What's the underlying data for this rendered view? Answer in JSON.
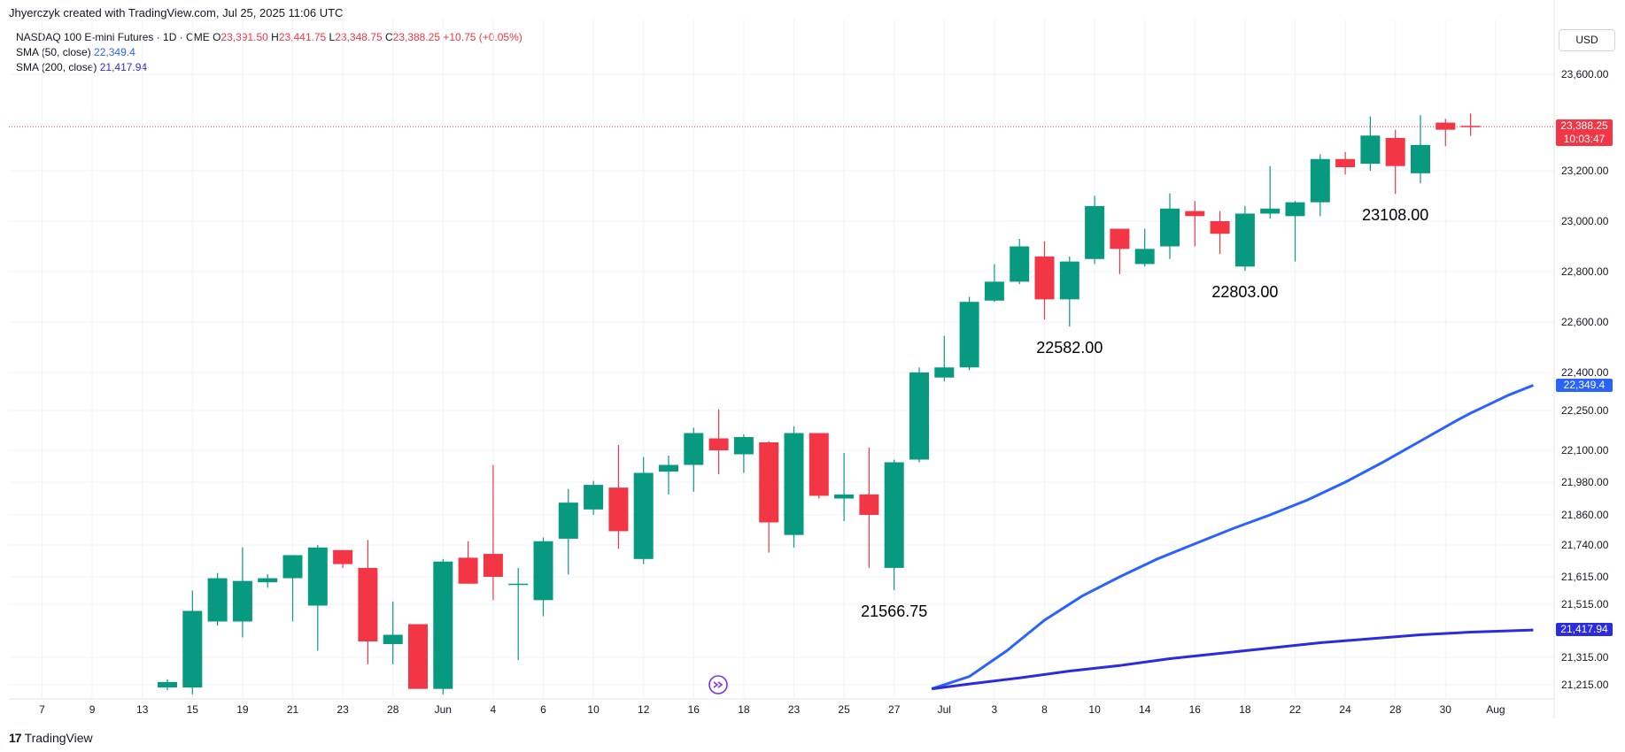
{
  "header": {
    "credit": "Jhyerczyk created with TradingView.com, Jul 25, 2025 11:06 UTC"
  },
  "legend": {
    "symbol": "NASDAQ 100 E-mini Futures · 1D · CME",
    "open_label": "O",
    "open": "23,391.50",
    "high_label": "H",
    "high": "23,441.75",
    "low_label": "L",
    "low": "23,348.75",
    "close_label": "C",
    "close": "23,388.25",
    "change": "+10.75 (+0.05%)",
    "sma50_label": "SMA (50, close)",
    "sma50_value": "22,349.4",
    "sma200_label": "SMA (200, close)",
    "sma200_value": "21,417.94"
  },
  "currency": "USD",
  "last_price_tag": {
    "price": "23,388.25",
    "countdown": "10:03:47"
  },
  "sma50_tag": "22,349.4",
  "sma200_tag": "21,417.94",
  "footer": {
    "brand": "TradingView",
    "logo_glyph": "17"
  },
  "colors": {
    "up": "#089981",
    "down": "#f23645",
    "sma50": "#2962ff",
    "sma200": "#2b2be0",
    "grid": "#f0f3fa",
    "text": "#131722"
  },
  "icons": [
    "scroll-to-realtime-icon",
    "tradingview-logo-icon"
  ],
  "chart_data": {
    "type": "candlestick",
    "title": "NASDAQ 100 E-mini Futures · 1D · CME",
    "y_axis_ticks": [
      "23,600.00",
      "23,400.00",
      "23,200.00",
      "23,000.00",
      "22,800.00",
      "22,600.00",
      "22,400.00",
      "22,250.00",
      "22,100.00",
      "21,980.00",
      "21,860.00",
      "21,740.00",
      "21,615.00",
      "21,515.00",
      "21,315.00",
      "21,215.00"
    ],
    "x_axis_ticks": [
      "7",
      "9",
      "13",
      "15",
      "19",
      "21",
      "23",
      "28",
      "Jun",
      "4",
      "6",
      "10",
      "12",
      "16",
      "18",
      "23",
      "25",
      "27",
      "Jul",
      "3",
      "8",
      "10",
      "14",
      "16",
      "18",
      "22",
      "24",
      "28",
      "30",
      "Aug"
    ],
    "x_tick_slots": [
      0,
      2,
      4,
      6,
      8,
      10,
      12,
      14,
      16,
      18,
      20,
      22,
      24,
      26,
      28,
      30,
      32,
      34,
      36,
      38,
      40,
      42,
      44,
      46,
      48,
      50,
      52,
      54,
      56,
      58
    ],
    "candles": [
      {
        "slot": 5,
        "o": 21205,
        "h": 21235,
        "l": 21195,
        "c": 21225
      },
      {
        "slot": 6,
        "o": 21205,
        "h": 21565,
        "l": 21180,
        "c": 21490
      },
      {
        "slot": 7,
        "o": 21450,
        "h": 21630,
        "l": 21435,
        "c": 21610
      },
      {
        "slot": 8,
        "o": 21450,
        "h": 21730,
        "l": 21390,
        "c": 21600
      },
      {
        "slot": 9,
        "o": 21595,
        "h": 21625,
        "l": 21575,
        "c": 21610
      },
      {
        "slot": 10,
        "o": 21610,
        "h": 21700,
        "l": 21450,
        "c": 21700
      },
      {
        "slot": 11,
        "o": 21510,
        "h": 21740,
        "l": 21340,
        "c": 21730
      },
      {
        "slot": 12,
        "o": 21720,
        "h": 21720,
        "l": 21650,
        "c": 21665
      },
      {
        "slot": 13,
        "o": 21650,
        "h": 21760,
        "l": 21290,
        "c": 21375
      },
      {
        "slot": 14,
        "o": 21365,
        "h": 21525,
        "l": 21290,
        "c": 21400
      },
      {
        "slot": 15,
        "o": 21440,
        "h": 21440,
        "l": 21200,
        "c": 21200
      },
      {
        "slot": 16,
        "o": 21200,
        "h": 21685,
        "l": 21180,
        "c": 21675
      },
      {
        "slot": 17,
        "o": 21690,
        "h": 21755,
        "l": 21590,
        "c": 21590
      },
      {
        "slot": 18,
        "o": 21705,
        "h": 22045,
        "l": 21530,
        "c": 21615
      },
      {
        "slot": 19,
        "o": 21590,
        "h": 21650,
        "l": 21305,
        "c": 21590
      },
      {
        "slot": 20,
        "o": 21530,
        "h": 21770,
        "l": 21470,
        "c": 21755
      },
      {
        "slot": 21,
        "o": 21765,
        "h": 21955,
        "l": 21625,
        "c": 21905
      },
      {
        "slot": 22,
        "o": 21880,
        "h": 21985,
        "l": 21860,
        "c": 21970
      },
      {
        "slot": 23,
        "o": 21960,
        "h": 22120,
        "l": 21725,
        "c": 21795
      },
      {
        "slot": 24,
        "o": 21685,
        "h": 22075,
        "l": 21665,
        "c": 22015
      },
      {
        "slot": 25,
        "o": 22020,
        "h": 22080,
        "l": 21935,
        "c": 22045
      },
      {
        "slot": 26,
        "o": 22045,
        "h": 22185,
        "l": 21945,
        "c": 22165
      },
      {
        "slot": 27,
        "o": 22145,
        "h": 22255,
        "l": 22010,
        "c": 22100
      },
      {
        "slot": 28,
        "o": 22085,
        "h": 22160,
        "l": 22015,
        "c": 22150
      },
      {
        "slot": 29,
        "o": 22130,
        "h": 22135,
        "l": 21710,
        "c": 21830
      },
      {
        "slot": 30,
        "o": 21780,
        "h": 22190,
        "l": 21730,
        "c": 22165
      },
      {
        "slot": 31,
        "o": 22165,
        "h": 22165,
        "l": 21920,
        "c": 21930
      },
      {
        "slot": 32,
        "o": 21920,
        "h": 22090,
        "l": 21835,
        "c": 21935
      },
      {
        "slot": 33,
        "o": 21935,
        "h": 22110,
        "l": 21650,
        "c": 21860
      },
      {
        "slot": 34,
        "o": 21650,
        "h": 22065,
        "l": 21566.75,
        "c": 22055
      },
      {
        "slot": 35,
        "o": 22065,
        "h": 22420,
        "l": 22055,
        "c": 22400
      },
      {
        "slot": 36,
        "o": 22380,
        "h": 22545,
        "l": 22365,
        "c": 22420
      },
      {
        "slot": 37,
        "o": 22420,
        "h": 22700,
        "l": 22410,
        "c": 22680
      },
      {
        "slot": 38,
        "o": 22685,
        "h": 22830,
        "l": 22680,
        "c": 22760
      },
      {
        "slot": 39,
        "o": 22760,
        "h": 22930,
        "l": 22750,
        "c": 22900
      },
      {
        "slot": 40,
        "o": 22860,
        "h": 22920,
        "l": 22610,
        "c": 22690
      },
      {
        "slot": 41,
        "o": 22690,
        "h": 22860,
        "l": 22582,
        "c": 22840
      },
      {
        "slot": 42,
        "o": 22850,
        "h": 23100,
        "l": 22830,
        "c": 23060
      },
      {
        "slot": 43,
        "o": 22970,
        "h": 22970,
        "l": 22790,
        "c": 22890
      },
      {
        "slot": 44,
        "o": 22830,
        "h": 22970,
        "l": 22820,
        "c": 22890
      },
      {
        "slot": 45,
        "o": 22900,
        "h": 23110,
        "l": 22850,
        "c": 23050
      },
      {
        "slot": 46,
        "o": 23040,
        "h": 23080,
        "l": 22900,
        "c": 23020
      },
      {
        "slot": 47,
        "o": 23000,
        "h": 23040,
        "l": 22870,
        "c": 22950
      },
      {
        "slot": 48,
        "o": 22820,
        "h": 23060,
        "l": 22803,
        "c": 23030
      },
      {
        "slot": 49,
        "o": 23030,
        "h": 23220,
        "l": 23010,
        "c": 23050
      },
      {
        "slot": 50,
        "o": 23020,
        "h": 23080,
        "l": 22840,
        "c": 23075
      },
      {
        "slot": 51,
        "o": 23075,
        "h": 23270,
        "l": 23020,
        "c": 23250
      },
      {
        "slot": 52,
        "o": 23250,
        "h": 23280,
        "l": 23185,
        "c": 23215
      },
      {
        "slot": 53,
        "o": 23230,
        "h": 23430,
        "l": 23200,
        "c": 23350
      },
      {
        "slot": 54,
        "o": 23340,
        "h": 23375,
        "l": 23108,
        "c": 23220
      },
      {
        "slot": 55,
        "o": 23190,
        "h": 23435,
        "l": 23150,
        "c": 23310
      },
      {
        "slot": 56,
        "o": 23405,
        "h": 23420,
        "l": 23305,
        "c": 23375
      },
      {
        "slot": 57,
        "o": 23391.5,
        "h": 23441.75,
        "l": 23348.75,
        "c": 23388.25
      }
    ],
    "sma50": [
      [
        35.5,
        21200
      ],
      [
        37,
        21245
      ],
      [
        38.5,
        21340
      ],
      [
        40,
        21455
      ],
      [
        41.5,
        21545
      ],
      [
        43,
        21615
      ],
      [
        44.5,
        21685
      ],
      [
        46,
        21745
      ],
      [
        47.5,
        21805
      ],
      [
        49,
        21860
      ],
      [
        50.5,
        21915
      ],
      [
        52,
        21980
      ],
      [
        53.5,
        22055
      ],
      [
        55,
        22135
      ],
      [
        56.5,
        22215
      ],
      [
        57,
        22240
      ],
      [
        57.5,
        22263
      ],
      [
        58.5,
        22310
      ],
      [
        59.5,
        22349.4
      ]
    ],
    "sma200": [
      [
        35.5,
        21200
      ],
      [
        37,
        21218
      ],
      [
        39,
        21240
      ],
      [
        41,
        21265
      ],
      [
        43,
        21285
      ],
      [
        45,
        21310
      ],
      [
        47,
        21330
      ],
      [
        49,
        21350
      ],
      [
        51,
        21370
      ],
      [
        53,
        21385
      ],
      [
        55,
        21400
      ],
      [
        57,
        21410
      ],
      [
        59.5,
        21417.94
      ]
    ],
    "annotations": [
      {
        "text": "21566.75",
        "slot": 34,
        "price": 21566.75,
        "pos": "below"
      },
      {
        "text": "22582.00",
        "slot": 41,
        "price": 22582,
        "pos": "below"
      },
      {
        "text": "22803.00",
        "slot": 48,
        "price": 22803,
        "pos": "below"
      },
      {
        "text": "23108.00",
        "slot": 54,
        "price": 23108,
        "pos": "below"
      }
    ],
    "last_price": 23388.25,
    "grid": true
  }
}
